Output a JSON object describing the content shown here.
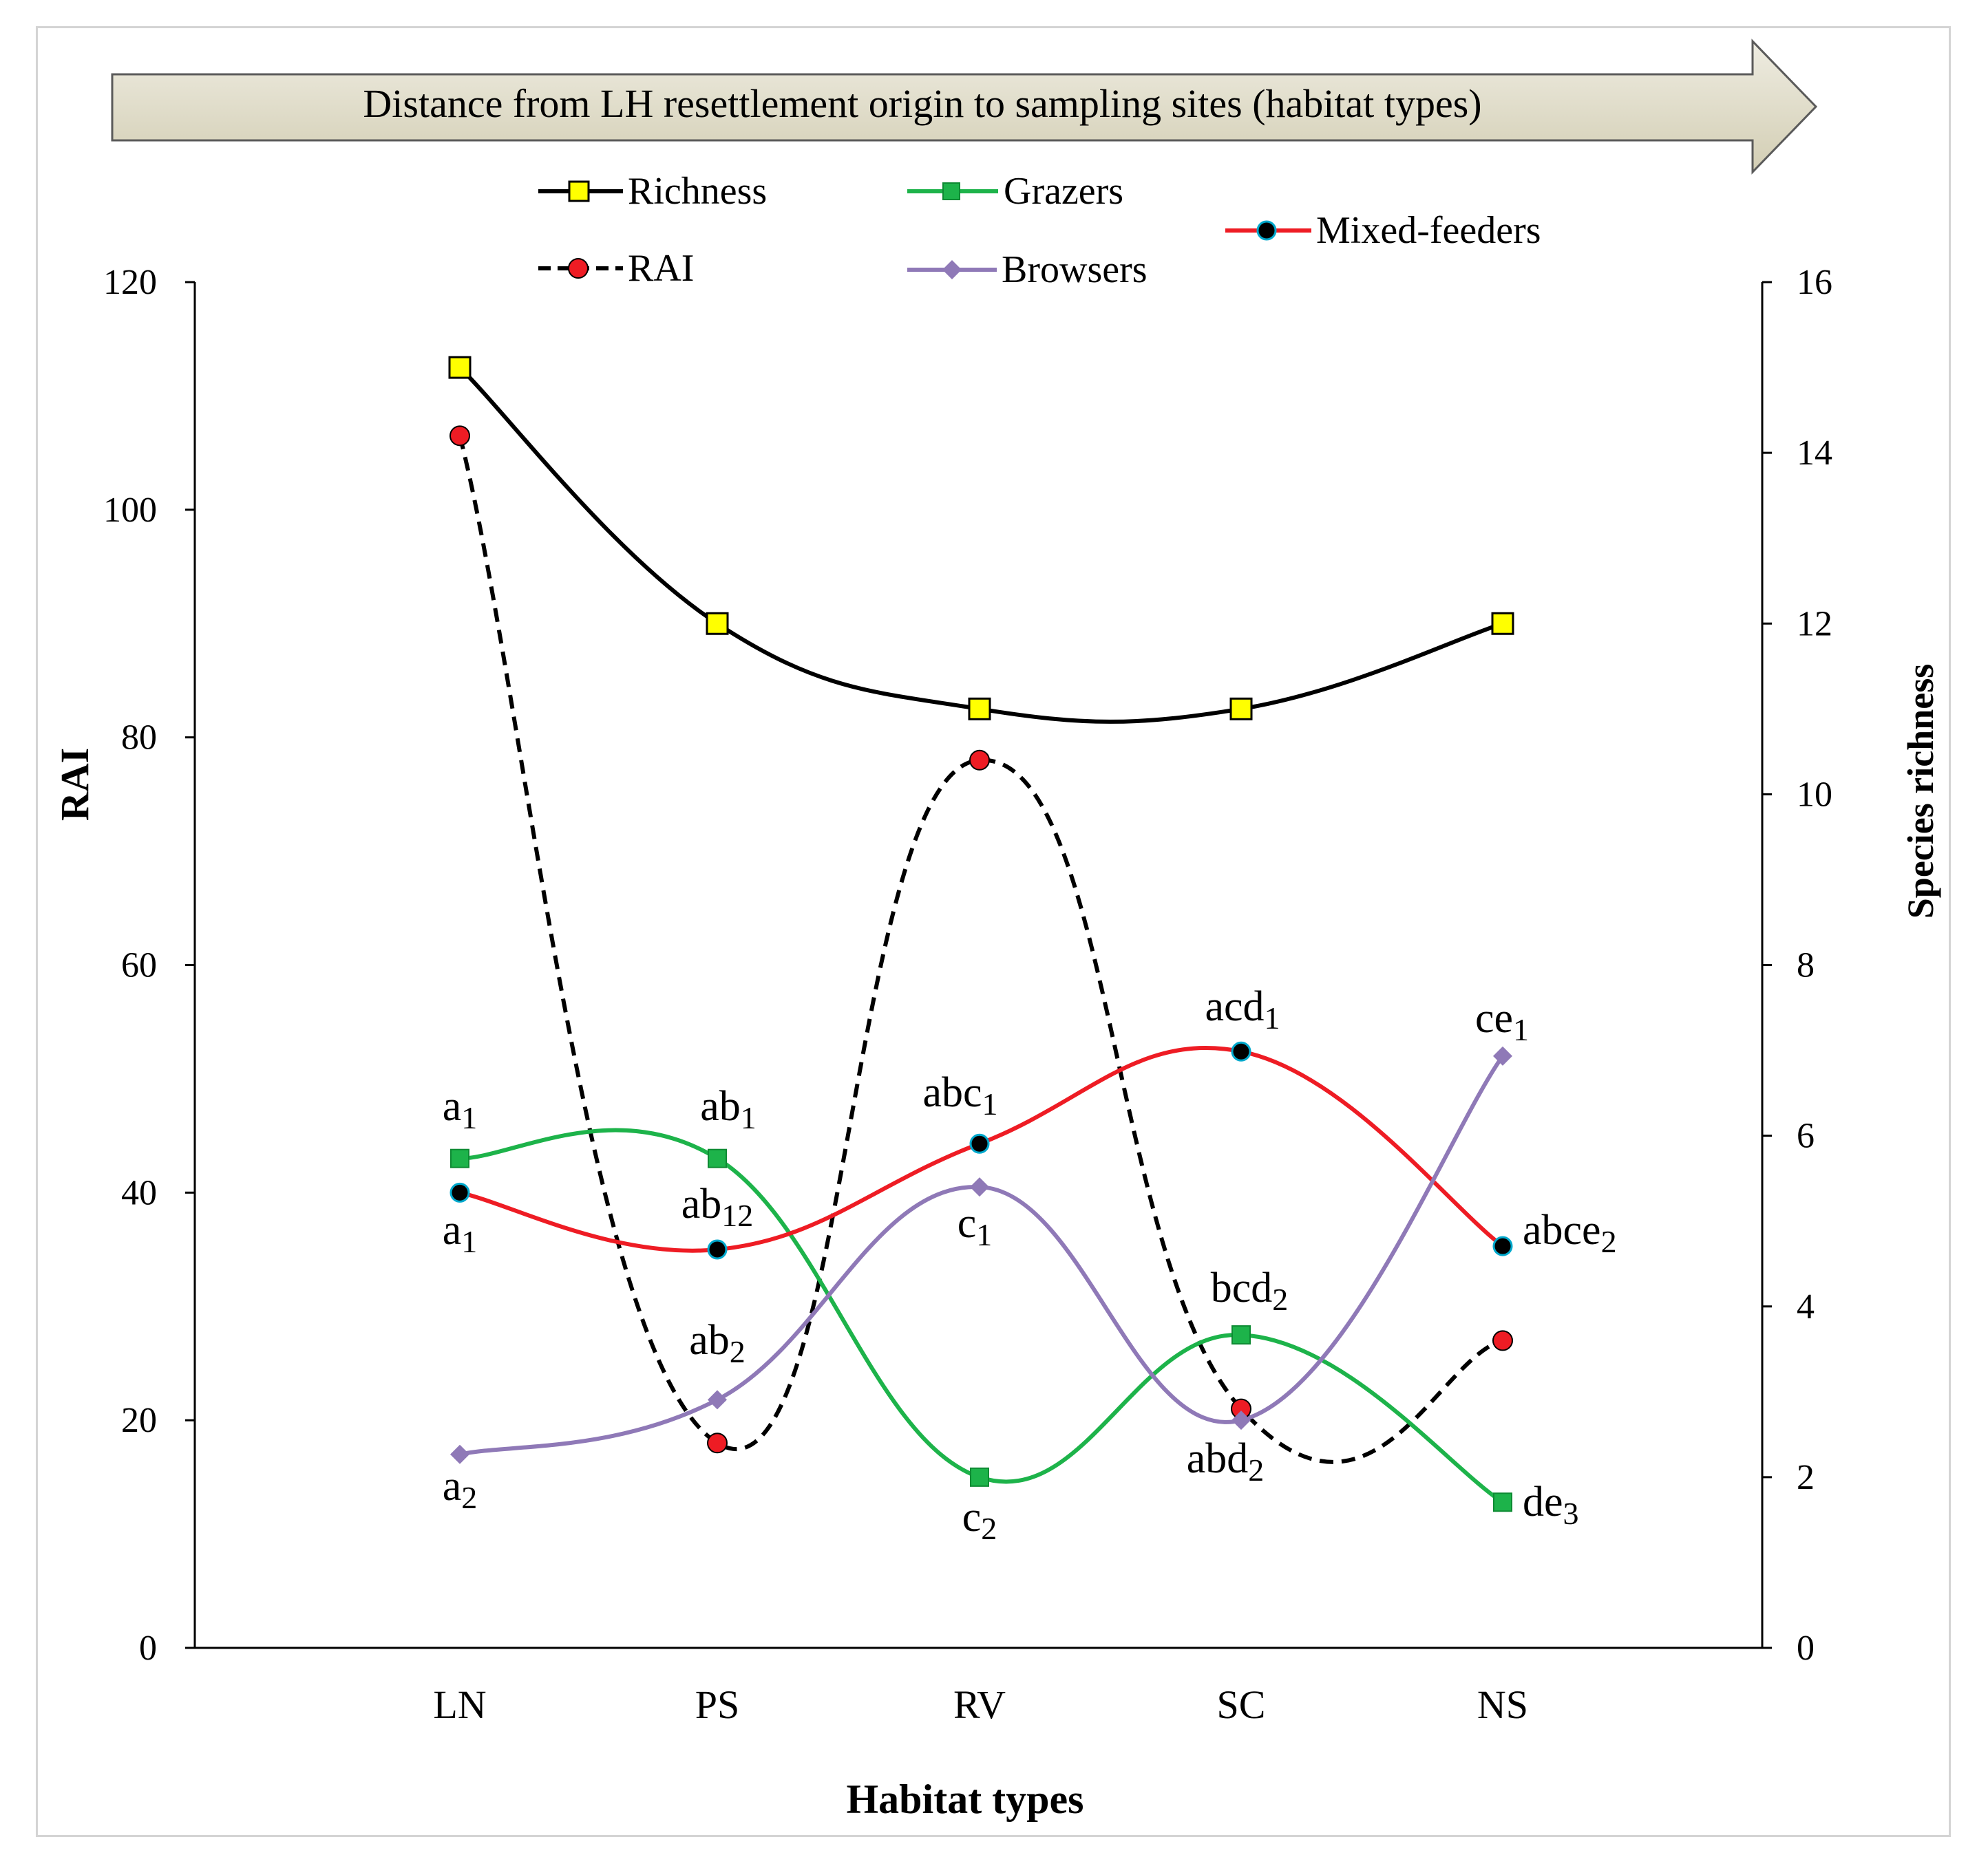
{
  "banner": {
    "text": "Distance from LH resettlement origin to sampling sites (habitat types)"
  },
  "colors": {
    "richness": "#000000",
    "rai": "#000000",
    "grazers": "#1db34a",
    "mixed": "#ee1c24",
    "browsers": "#8f79b7",
    "richness_marker": "#ffff00",
    "rai_marker": "#ee1c24",
    "grazer_marker": "#1db34a",
    "mixed_marker": "#000000",
    "mixed_marker_edge": "#00a8cc",
    "browser_marker": "#8f79b7",
    "banner_fill": "#ddd9c4"
  },
  "chart_data": {
    "type": "line",
    "title": "",
    "xlabel": "Habitat types",
    "ylabel": "RAI",
    "y2label": "Species richness",
    "categories": [
      "LN",
      "PS",
      "RV",
      "SC",
      "NS"
    ],
    "ylim": [
      0,
      120
    ],
    "y2lim": [
      0,
      16
    ],
    "yticks": [
      0,
      20,
      40,
      60,
      80,
      100,
      120
    ],
    "y2ticks": [
      0,
      2,
      4,
      6,
      8,
      10,
      12,
      14,
      16
    ],
    "grid": false,
    "series": [
      {
        "key": "richness",
        "name": "Richness",
        "axis": "right",
        "values": [
          15,
          12,
          11,
          11,
          12
        ],
        "dash": false,
        "marker": "square-yellow"
      },
      {
        "key": "rai",
        "name": "RAI",
        "axis": "left",
        "values": [
          106.5,
          18,
          78,
          21,
          27
        ],
        "dash": true,
        "marker": "circle-red"
      },
      {
        "key": "grazers",
        "name": "Grazers",
        "axis": "left",
        "values": [
          43,
          43,
          15,
          27.5,
          12.8
        ],
        "dash": false,
        "marker": "square-green",
        "labels": [
          {
            "base": "a",
            "sub": "1"
          },
          {
            "base": "ab",
            "sub": "1"
          },
          {
            "base": "c",
            "sub": "2"
          },
          {
            "base": "bcd",
            "sub": "2"
          },
          {
            "base": "de",
            "sub": "3"
          }
        ]
      },
      {
        "key": "mixed",
        "name": "Mixed-feeders",
        "axis": "left",
        "values": [
          40,
          35,
          44.3,
          52.4,
          35.3
        ],
        "dash": false,
        "marker": "circle-black",
        "labels": [
          {
            "base": "a",
            "sub": "1"
          },
          {
            "base": "ab",
            "sub": "12"
          },
          {
            "base": "abc",
            "sub": "1"
          },
          {
            "base": "acd",
            "sub": "1"
          },
          {
            "base": "abce",
            "sub": "2"
          }
        ]
      },
      {
        "key": "browsers",
        "name": "Browsers",
        "axis": "left",
        "values": [
          17,
          21.8,
          40.5,
          20,
          52
        ],
        "dash": false,
        "marker": "diamond-purple",
        "labels": [
          {
            "base": "a",
            "sub": "2"
          },
          {
            "base": "ab",
            "sub": "2"
          },
          {
            "base": "c",
            "sub": "1"
          },
          {
            "base": "abd",
            "sub": "2"
          },
          {
            "base": "ce",
            "sub": "1"
          }
        ]
      }
    ]
  }
}
